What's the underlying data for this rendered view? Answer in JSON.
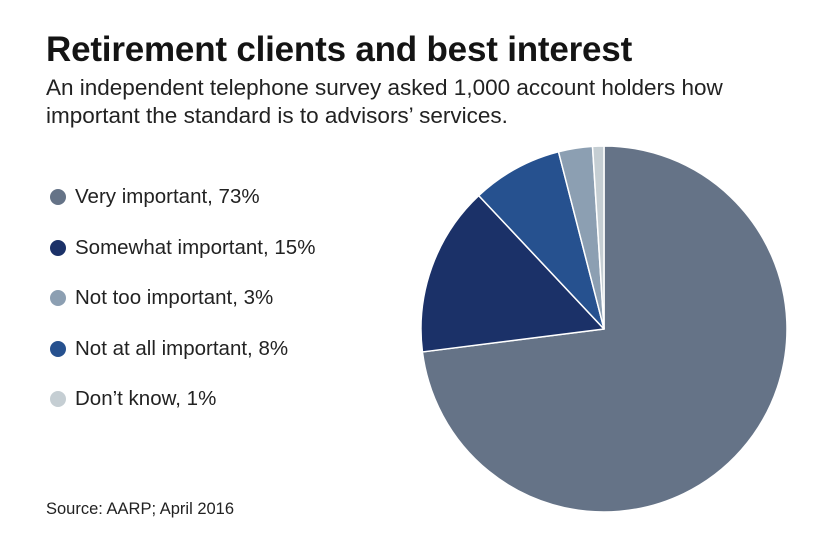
{
  "chart_data": {
    "type": "pie",
    "title": "Retirement clients and best interest",
    "subtitle": "An independent telephone survey asked 1,000 account holders how important the standard is to advisors’ services.",
    "legend_position": "left",
    "slices": [
      {
        "label": "Very important, 73%",
        "value": 73,
        "color": "#657387"
      },
      {
        "label": "Somewhat important, 15%",
        "value": 15,
        "color": "#1b3168"
      },
      {
        "label": "Not at all important, 8%",
        "value": 8,
        "color": "#26518f"
      },
      {
        "label": "Not too important, 3%",
        "value": 3,
        "color": "#8c9fb2"
      },
      {
        "label": "Don’t know, 1%",
        "value": 1,
        "color": "#c5ced3"
      }
    ],
    "legend": [
      {
        "label": "Very important, 73%",
        "color": "#657387"
      },
      {
        "label": "Somewhat important, 15%",
        "color": "#1b3168"
      },
      {
        "label": "Not too important, 3%",
        "color": "#8c9fb2"
      },
      {
        "label": "Not at all important, 8%",
        "color": "#26518f"
      },
      {
        "label": "Don’t know, 1%",
        "color": "#c5ced3"
      }
    ],
    "source": "Source: AARP; April 2016"
  }
}
